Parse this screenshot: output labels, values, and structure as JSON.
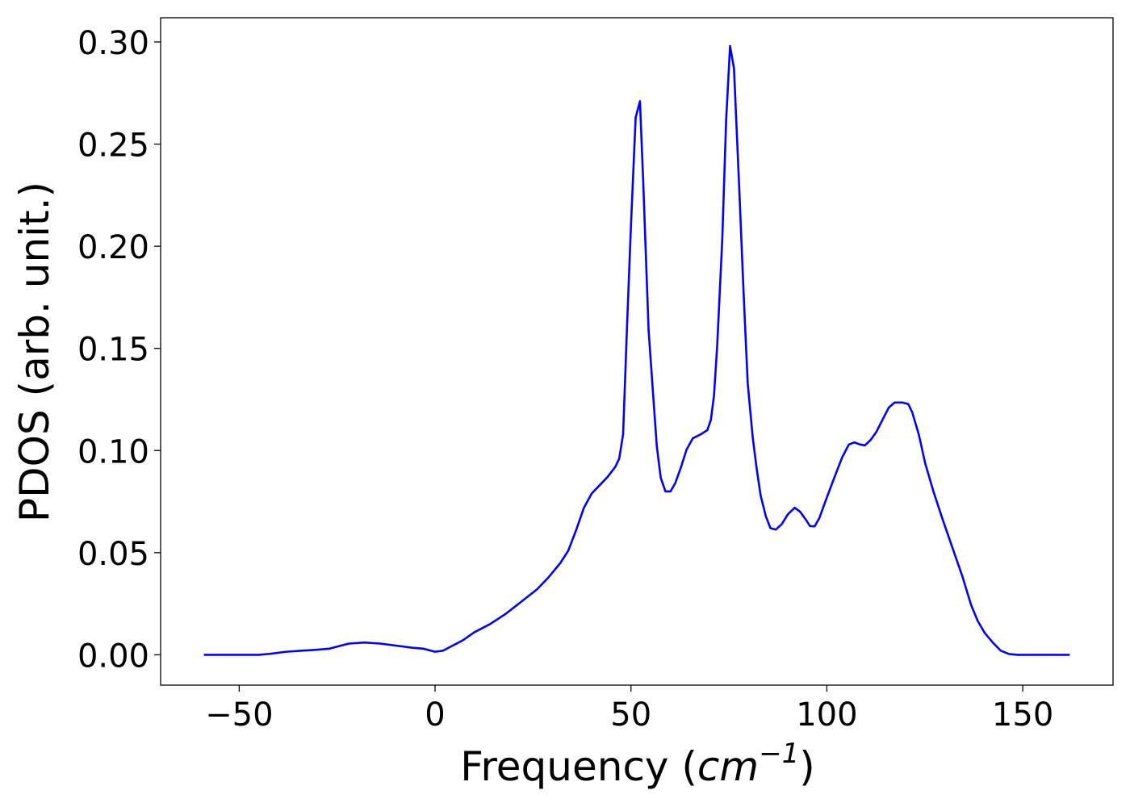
{
  "chart_data": {
    "type": "line",
    "xlabel_parts": [
      "Frequency (",
      "cm",
      "−1",
      ")"
    ],
    "ylabel": "PDOS (arb. unit.)",
    "xlim": [
      -70.05,
      173.05
    ],
    "ylim": [
      -0.01485,
      0.31185
    ],
    "xticks": [
      {
        "value": -50,
        "label": "−50"
      },
      0,
      50,
      100,
      150
    ],
    "yticks": [
      {
        "value": 0,
        "label": "0.00"
      },
      {
        "value": 0.05,
        "label": "0.05"
      },
      {
        "value": 0.1,
        "label": "0.10"
      },
      {
        "value": 0.15,
        "label": "0.15"
      },
      {
        "value": 0.2,
        "label": "0.20"
      },
      {
        "value": 0.25,
        "label": "0.25"
      },
      {
        "value": 0.3,
        "label": "0.30"
      }
    ],
    "grid": false,
    "x": [
      -59,
      -45,
      -42,
      -38,
      -34,
      -30,
      -27,
      -25,
      -22,
      -18,
      -14,
      -10,
      -6,
      -3,
      -1,
      0,
      2,
      4,
      7,
      10,
      14,
      18,
      22,
      26,
      29,
      32,
      34,
      36,
      38,
      40,
      42,
      44,
      46,
      47,
      48,
      49,
      50,
      51.2,
      52.3,
      53.1,
      54.5,
      55.6,
      56.6,
      57.6,
      58.8,
      60.1,
      61.3,
      62.8,
      64.2,
      65.8,
      67.9,
      69.5,
      70.4,
      71.2,
      72,
      73.3,
      74.3,
      75.3,
      76.3,
      77.6,
      78.8,
      79.8,
      81.1,
      82.1,
      83.1,
      84.4,
      85.6,
      87,
      88.5,
      90.1,
      91.8,
      93.2,
      94.7,
      95.7,
      96.9,
      98.1,
      99.8,
      101.9,
      103.9,
      105.6,
      107,
      108.4,
      109.7,
      111.1,
      112.6,
      114.2,
      115.8,
      117.3,
      119.3,
      120.8,
      121.8,
      123.5,
      125.1,
      127.2,
      129.6,
      132.1,
      134.6,
      136.8,
      138.5,
      140.3,
      142.4,
      144.4,
      146.5,
      148.6,
      162
    ],
    "series": [
      {
        "name": "PDOS",
        "color": "#0000ff",
        "values": [
          0,
          0,
          0.0005,
          0.0015,
          0.002,
          0.0025,
          0.003,
          0.004,
          0.0055,
          0.006,
          0.0055,
          0.0045,
          0.0035,
          0.003,
          0.002,
          0.0015,
          0.002,
          0.004,
          0.007,
          0.011,
          0.015,
          0.02,
          0.026,
          0.032,
          0.038,
          0.045,
          0.051,
          0.061,
          0.072,
          0.079,
          0.083,
          0.087,
          0.092,
          0.096,
          0.108,
          0.161,
          0.21,
          0.263,
          0.271,
          0.233,
          0.159,
          0.129,
          0.102,
          0.0867,
          0.08,
          0.08,
          0.084,
          0.092,
          0.1005,
          0.106,
          0.108,
          0.11,
          0.115,
          0.127,
          0.151,
          0.203,
          0.262,
          0.298,
          0.287,
          0.23,
          0.175,
          0.133,
          0.106,
          0.091,
          0.078,
          0.068,
          0.062,
          0.0613,
          0.064,
          0.0689,
          0.072,
          0.07,
          0.066,
          0.063,
          0.0629,
          0.067,
          0.076,
          0.0867,
          0.0966,
          0.1029,
          0.104,
          0.103,
          0.1025,
          0.105,
          0.109,
          0.115,
          0.121,
          0.1235,
          0.1235,
          0.1227,
          0.1187,
          0.1076,
          0.0938,
          0.08,
          0.066,
          0.0522,
          0.0384,
          0.0245,
          0.0166,
          0.0107,
          0.0059,
          0.002,
          0.0004,
          0,
          0
        ]
      }
    ]
  }
}
